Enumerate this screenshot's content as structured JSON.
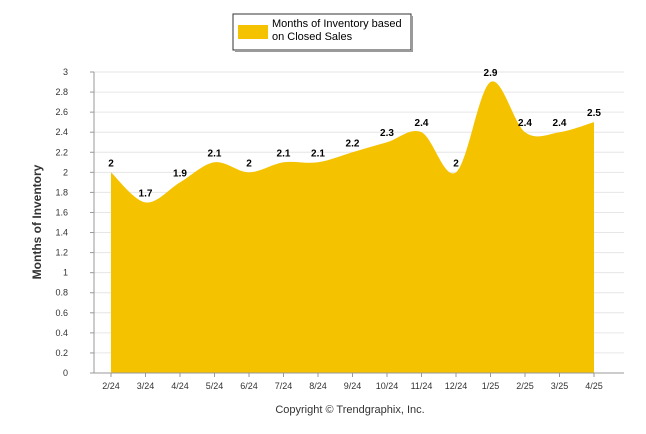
{
  "chart_data": {
    "type": "area",
    "categories": [
      "2/24",
      "3/24",
      "4/24",
      "5/24",
      "6/24",
      "7/24",
      "8/24",
      "9/24",
      "10/24",
      "11/24",
      "12/24",
      "1/25",
      "2/25",
      "3/25",
      "4/25"
    ],
    "series": [
      {
        "name": "Months of Inventory based on Closed Sales",
        "legend_lines": [
          "Months of Inventory based",
          "on Closed Sales"
        ],
        "values": [
          2,
          1.7,
          1.9,
          2.1,
          2,
          2.1,
          2.1,
          2.2,
          2.3,
          2.4,
          2,
          2.9,
          2.4,
          2.4,
          2.5
        ],
        "labels": [
          "2",
          "1.7",
          "1.9",
          "2.1",
          "2",
          "2.1",
          "2.1",
          "2.2",
          "2.3",
          "2.4",
          "2",
          "2.9",
          "2.4",
          "2.4",
          "2.5"
        ],
        "color": "#F5C200"
      }
    ],
    "title": "",
    "xlabel": "",
    "ylabel": "Months of Inventory",
    "ylim": [
      0,
      3
    ],
    "yticks": [
      "0",
      "0.2",
      "0.4",
      "0.6",
      "0.8",
      "1",
      "1.2",
      "1.4",
      "1.6",
      "1.8",
      "2",
      "2.2",
      "2.4",
      "2.6",
      "2.8",
      "3"
    ],
    "grid": true,
    "legend_position": "top-center",
    "gridline_color": "#e6e6e6"
  },
  "footer": {
    "copyright": "Copyright © Trendgraphix, Inc."
  }
}
